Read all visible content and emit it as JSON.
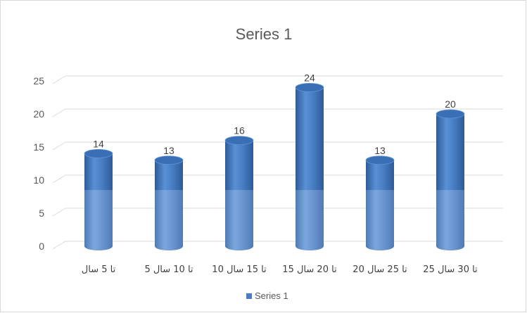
{
  "chart_data": {
    "type": "bar",
    "title": "Series 1",
    "categories": [
      "تا 5 سال",
      "5 تا 10 سال",
      "10 تا 15 سال",
      "15 تا 20 سال",
      "20 تا 25 سال",
      "25 تا 30 سال"
    ],
    "series": [
      {
        "name": "Series 1",
        "values": [
          14,
          13,
          16,
          24,
          13,
          20
        ]
      }
    ],
    "ylim": [
      0,
      25
    ],
    "yticks": [
      0,
      5,
      10,
      15,
      20,
      25
    ],
    "xlabel": "",
    "ylabel": "",
    "grid": true,
    "legend_position": "bottom",
    "shape": "3d-cylinder",
    "colors": {
      "bar": "#4a7fc6",
      "bar_dark": "#2f5f9e",
      "bar_top": "#3a6fb5",
      "grid": "#d9d9d9"
    }
  }
}
